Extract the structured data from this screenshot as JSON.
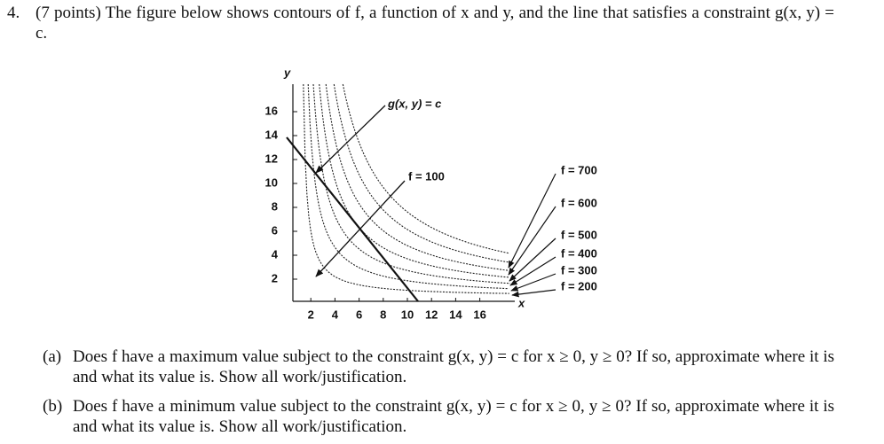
{
  "problem": {
    "number": "4.",
    "intro": "(7 points) The figure below shows contours of f, a function of x and y, and the line that satisfies a constraint g(x, y) = c.",
    "figure": {
      "y_label": "y",
      "x_label": "x",
      "xticks": [
        2,
        4,
        6,
        8,
        10,
        12,
        14,
        16
      ],
      "yticks": [
        2,
        4,
        6,
        8,
        10,
        12,
        14,
        16
      ],
      "constraint_label": "g(x, y) = c",
      "inner_label": "f = 100",
      "contour_labels": [
        "f = 700",
        "f = 600",
        "f = 500",
        "f = 400",
        "f = 300",
        "f = 200"
      ]
    },
    "parts": [
      {
        "label": "(a)",
        "text": "Does f have a maximum value subject to the constraint g(x, y) = c for x ≥ 0, y ≥ 0? If so, approximate where it is and what its value is. Show all work/justification."
      },
      {
        "label": "(b)",
        "text": "Does f have a minimum value subject to the constraint g(x, y) = c for x ≥ 0, y ≥ 0? If so, approximate where it is and what its value is. Show all work/justification."
      }
    ]
  }
}
